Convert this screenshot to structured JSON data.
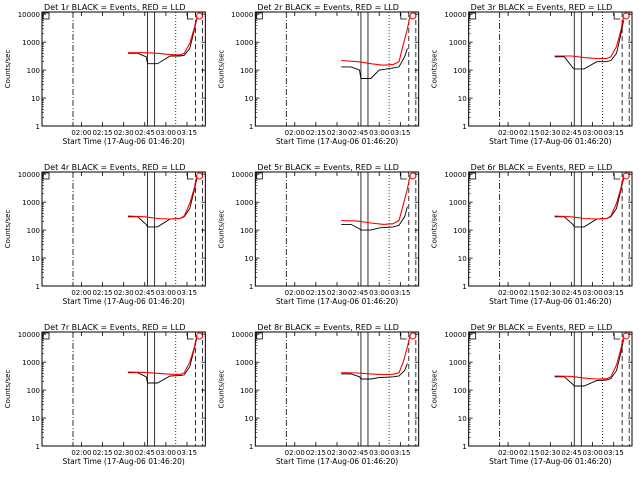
{
  "colors": {
    "events": "#000000",
    "lld": "#ff0000",
    "axis": "#000000"
  },
  "axes": {
    "xlabel": "Start Time (17-Aug-06 01:46:20)",
    "ylabel": "Counts/sec",
    "x_ticks": [
      {
        "t": 0,
        "label": "02:00"
      },
      {
        "t": 15,
        "label": "02:15"
      },
      {
        "t": 30,
        "label": "02:30"
      },
      {
        "t": 45,
        "label": "02:45"
      },
      {
        "t": 60,
        "label": "03:00"
      },
      {
        "t": 75,
        "label": "03:15"
      }
    ],
    "y_ticks": [
      1,
      10,
      100,
      1000,
      10000
    ],
    "y_tick_labels": [
      "1",
      "10",
      "100",
      "1000",
      "10000"
    ],
    "y_scale": "log",
    "xlim_minutes_after_0200": [
      -28,
      88
    ],
    "ylim": [
      1,
      12000
    ]
  },
  "chart_data": [
    {
      "type": "line",
      "title": "Det 1r  BLACK = Events, RED = LLD",
      "time_offset_min": 0,
      "drop_to": 170,
      "drop_dip": 150,
      "flat_level": 320,
      "red_level": 400,
      "spike_level": 7000,
      "series": [
        {
          "name": "Events",
          "color": "#000000",
          "x": [
            33,
            40,
            46,
            47,
            54,
            63,
            70,
            73,
            77,
            80,
            82
          ],
          "y": [
            400,
            400,
            300,
            170,
            170,
            320,
            320,
            340,
            600,
            2500,
            7000
          ]
        },
        {
          "name": "LLD",
          "color": "#ff0000",
          "x": [
            33,
            45,
            54,
            63,
            70,
            73,
            77,
            80,
            82
          ],
          "y": [
            420,
            420,
            400,
            360,
            350,
            400,
            900,
            3000,
            8000
          ]
        }
      ],
      "markers": {
        "dash_dot": -6,
        "solid": [
          47,
          52
        ],
        "dotted": 67,
        "dashed": [
          81,
          86
        ]
      }
    },
    {
      "type": "line",
      "title": "Det 2r  BLACK = Events, RED = LLD",
      "time_offset_min": 0,
      "series": [
        {
          "name": "Events",
          "color": "#000000",
          "x": [
            33,
            40,
            46,
            47,
            54,
            60,
            70,
            74,
            78,
            80
          ],
          "y": [
            130,
            130,
            100,
            50,
            50,
            100,
            120,
            130,
            300,
            600
          ]
        },
        {
          "name": "LLD",
          "color": "#ff0000",
          "x": [
            33,
            45,
            54,
            63,
            70,
            74,
            77,
            80,
            82
          ],
          "y": [
            220,
            200,
            170,
            150,
            160,
            200,
            800,
            3000,
            9000
          ]
        }
      ],
      "markers": {
        "dash_dot": -6,
        "solid": [
          47,
          52
        ],
        "dotted": 67,
        "dashed": [
          81,
          86
        ]
      }
    },
    {
      "type": "line",
      "title": "Det 3r  BLACK = Events, RED = LLD",
      "time_offset_min": 0,
      "series": [
        {
          "name": "Events",
          "color": "#000000",
          "x": [
            33,
            40,
            46,
            47,
            54,
            63,
            70,
            73,
            77,
            80,
            82
          ],
          "y": [
            300,
            300,
            120,
            110,
            110,
            200,
            200,
            220,
            400,
            1800,
            6000
          ]
        },
        {
          "name": "LLD",
          "color": "#ff0000",
          "x": [
            33,
            45,
            54,
            63,
            70,
            73,
            77,
            80,
            82
          ],
          "y": [
            320,
            320,
            280,
            260,
            260,
            300,
            700,
            2500,
            8000
          ]
        }
      ],
      "markers": {
        "dash_dot": -6,
        "solid": [
          47,
          52
        ],
        "dotted": 67,
        "dashed": [
          81,
          86
        ]
      }
    },
    {
      "type": "line",
      "title": "Det 4r  BLACK = Events, RED = LLD",
      "time_offset_min": 0,
      "series": [
        {
          "name": "Events",
          "color": "#000000",
          "x": [
            33,
            40,
            46,
            47,
            54,
            63,
            70,
            73,
            77,
            80,
            82
          ],
          "y": [
            300,
            300,
            160,
            130,
            130,
            250,
            260,
            300,
            600,
            2500,
            7000
          ]
        },
        {
          "name": "LLD",
          "color": "#ff0000",
          "x": [
            33,
            45,
            54,
            63,
            70,
            73,
            77,
            80,
            82
          ],
          "y": [
            320,
            300,
            260,
            250,
            260,
            320,
            900,
            3000,
            9000
          ]
        }
      ],
      "markers": {
        "dash_dot": -6,
        "solid": [
          47,
          52
        ],
        "dotted": 67,
        "dashed": [
          81,
          86
        ]
      }
    },
    {
      "type": "line",
      "title": "Det 5r  BLACK = Events, RED = LLD",
      "time_offset_min": 0,
      "series": [
        {
          "name": "Events",
          "color": "#000000",
          "x": [
            33,
            40,
            46,
            47,
            54,
            60,
            70,
            74,
            78,
            80
          ],
          "y": [
            160,
            160,
            110,
            100,
            100,
            120,
            130,
            150,
            300,
            700
          ]
        },
        {
          "name": "LLD",
          "color": "#ff0000",
          "x": [
            33,
            45,
            54,
            63,
            70,
            74,
            77,
            80,
            82
          ],
          "y": [
            220,
            210,
            180,
            160,
            170,
            220,
            800,
            3000,
            9000
          ]
        }
      ],
      "markers": {
        "dash_dot": -6,
        "solid": [
          47,
          52
        ],
        "dotted": 67,
        "dashed": [
          81,
          86
        ]
      }
    },
    {
      "type": "line",
      "title": "Det 6r  BLACK = Events, RED = LLD",
      "time_offset_min": 0,
      "series": [
        {
          "name": "Events",
          "color": "#000000",
          "x": [
            33,
            40,
            46,
            47,
            54,
            63,
            70,
            73,
            77,
            80,
            82
          ],
          "y": [
            300,
            300,
            160,
            130,
            130,
            250,
            260,
            300,
            600,
            2500,
            7000
          ]
        },
        {
          "name": "LLD",
          "color": "#ff0000",
          "x": [
            33,
            45,
            54,
            63,
            70,
            73,
            77,
            80,
            82
          ],
          "y": [
            320,
            300,
            260,
            250,
            260,
            320,
            900,
            3000,
            9000
          ]
        }
      ],
      "markers": {
        "dash_dot": -6,
        "solid": [
          47,
          52
        ],
        "dotted": 67,
        "dashed": [
          81,
          86
        ]
      }
    },
    {
      "type": "line",
      "title": "Det 7r  BLACK = Events, RED = LLD",
      "time_offset_min": 0,
      "series": [
        {
          "name": "Events",
          "color": "#000000",
          "x": [
            33,
            40,
            46,
            47,
            54,
            63,
            70,
            73,
            77,
            80,
            82
          ],
          "y": [
            420,
            420,
            300,
            180,
            180,
            320,
            330,
            350,
            700,
            2800,
            7500
          ]
        },
        {
          "name": "LLD",
          "color": "#ff0000",
          "x": [
            33,
            45,
            54,
            63,
            70,
            73,
            77,
            80,
            82
          ],
          "y": [
            440,
            430,
            400,
            370,
            360,
            420,
            1000,
            3200,
            9000
          ]
        }
      ],
      "markers": {
        "dash_dot": -6,
        "solid": [
          47,
          52
        ],
        "dotted": 67,
        "dashed": [
          81,
          86
        ]
      }
    },
    {
      "type": "line",
      "title": "Det 8r  BLACK = Events, RED = LLD",
      "time_offset_min": 0,
      "series": [
        {
          "name": "Events",
          "color": "#000000",
          "x": [
            33,
            40,
            46,
            47,
            54,
            60,
            70,
            74,
            78,
            80
          ],
          "y": [
            380,
            380,
            300,
            250,
            250,
            280,
            300,
            320,
            500,
            900
          ]
        },
        {
          "name": "LLD",
          "color": "#ff0000",
          "x": [
            33,
            45,
            54,
            63,
            70,
            74,
            77,
            80,
            82
          ],
          "y": [
            420,
            410,
            380,
            360,
            370,
            420,
            1000,
            3500,
            9500
          ]
        }
      ],
      "markers": {
        "dash_dot": -6,
        "solid": [
          47,
          52
        ],
        "dotted": 67,
        "dashed": [
          81,
          86
        ]
      }
    },
    {
      "type": "line",
      "title": "Det 9r  BLACK = Events, RED = LLD",
      "time_offset_min": 0,
      "series": [
        {
          "name": "Events",
          "color": "#000000",
          "x": [
            33,
            40,
            46,
            47,
            54,
            63,
            70,
            73,
            77,
            80,
            82
          ],
          "y": [
            300,
            300,
            160,
            140,
            140,
            220,
            230,
            260,
            500,
            2000,
            6500
          ]
        },
        {
          "name": "LLD",
          "color": "#ff0000",
          "x": [
            33,
            45,
            54,
            63,
            70,
            73,
            77,
            80,
            82
          ],
          "y": [
            320,
            310,
            270,
            250,
            255,
            300,
            800,
            2800,
            8500
          ]
        }
      ],
      "markers": {
        "dash_dot": -6,
        "solid": [
          47,
          52
        ],
        "dotted": 67,
        "dashed": [
          81,
          86
        ]
      }
    }
  ]
}
